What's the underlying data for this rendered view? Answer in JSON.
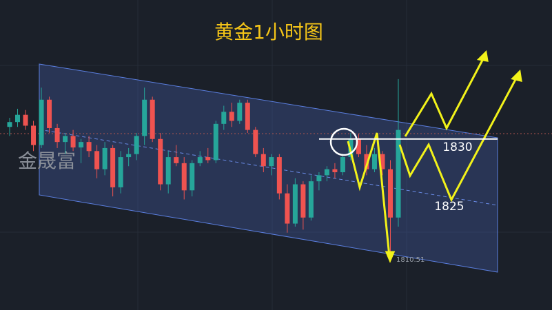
{
  "chart_data": {
    "type": "candlestick",
    "title": "黄金1小时图",
    "watermark": "金晟富",
    "ylim": [
      1801.7,
      1853.0
    ],
    "up_color": "#26a69a",
    "down_color": "#ef5350",
    "open": [
      1832.0,
      1832.8,
      1834.0,
      1832.2,
      1829.0,
      1836.5,
      1831.8,
      1829.5,
      1830.5,
      1828.6,
      1829.5,
      1828.0,
      1825.0,
      1828.5,
      1822.0,
      1827.0,
      1827.5,
      1830.5,
      1836.5,
      1830.0,
      1822.5,
      1827.0,
      1826.0,
      1821.5,
      1826.0,
      1827.0,
      1826.5,
      1832.5,
      1834.5,
      1833.0,
      1836.0,
      1831.5,
      1827.5,
      1825.5,
      1827.0,
      1821.0,
      1816.0,
      1822.5,
      1817.0,
      1823.0,
      1824.0,
      1825.0,
      1824.5,
      1827.0,
      1830.0,
      1827.5,
      1825.0,
      1827.5,
      1825.0,
      1817.0
    ],
    "high": [
      1833.5,
      1835.0,
      1834.8,
      1833.0,
      1838.5,
      1837.0,
      1832.5,
      1831.0,
      1831.5,
      1830.0,
      1830.5,
      1829.0,
      1829.5,
      1829.0,
      1828.0,
      1828.5,
      1831.0,
      1838.5,
      1837.0,
      1831.0,
      1828.0,
      1829.0,
      1827.0,
      1826.5,
      1828.0,
      1828.5,
      1833.0,
      1835.5,
      1836.0,
      1836.5,
      1836.5,
      1832.0,
      1828.5,
      1827.5,
      1827.5,
      1822.5,
      1823.5,
      1823.0,
      1824.0,
      1824.5,
      1825.5,
      1826.0,
      1827.5,
      1831.0,
      1830.8,
      1829.0,
      1828.5,
      1828.0,
      1826.5,
      1839.9
    ],
    "low": [
      1830.5,
      1832.0,
      1831.5,
      1828.0,
      1828.5,
      1831.0,
      1828.5,
      1827.5,
      1828.0,
      1826.0,
      1827.0,
      1823.5,
      1824.0,
      1820.5,
      1821.0,
      1825.5,
      1826.5,
      1829.0,
      1829.5,
      1821.5,
      1821.0,
      1825.5,
      1820.0,
      1820.5,
      1825.5,
      1826.0,
      1826.0,
      1831.5,
      1832.0,
      1832.5,
      1831.0,
      1827.0,
      1824.5,
      1824.0,
      1820.0,
      1814.5,
      1815.5,
      1815.0,
      1816.5,
      1821.5,
      1823.0,
      1823.5,
      1824.0,
      1826.5,
      1827.0,
      1824.0,
      1824.5,
      1824.0,
      1810.51,
      1815.5
    ],
    "close": [
      1832.8,
      1834.0,
      1832.2,
      1829.0,
      1836.5,
      1831.8,
      1829.5,
      1830.5,
      1828.6,
      1829.5,
      1828.0,
      1825.0,
      1828.5,
      1822.0,
      1827.0,
      1827.5,
      1830.5,
      1836.5,
      1830.0,
      1822.5,
      1827.0,
      1826.0,
      1821.5,
      1826.0,
      1827.0,
      1826.5,
      1832.5,
      1834.5,
      1833.0,
      1836.0,
      1831.5,
      1827.5,
      1825.5,
      1827.0,
      1821.0,
      1816.0,
      1822.5,
      1817.0,
      1823.0,
      1824.0,
      1825.0,
      1824.5,
      1827.0,
      1830.0,
      1827.5,
      1825.0,
      1827.5,
      1825.0,
      1817.0,
      1831.5
    ],
    "levels": {
      "resistance": 1830,
      "target": 1825,
      "low": 1810.51
    }
  }
}
